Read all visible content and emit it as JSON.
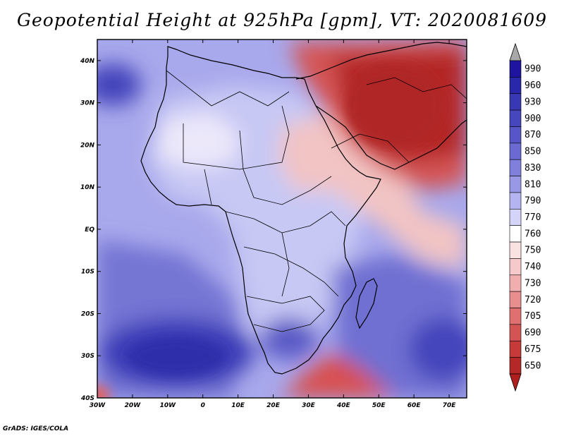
{
  "title": "Geopotential Height at 925hPa [gpm], VT: 2020081609",
  "credit": "GrADS: IGES/COLA",
  "map": {
    "lon_range": [
      -30,
      75
    ],
    "lat_range": [
      -40,
      45
    ],
    "x_ticks": [
      {
        "value": -30,
        "label": "30W"
      },
      {
        "value": -20,
        "label": "20W"
      },
      {
        "value": -10,
        "label": "10W"
      },
      {
        "value": 0,
        "label": "0"
      },
      {
        "value": 10,
        "label": "10E"
      },
      {
        "value": 20,
        "label": "20E"
      },
      {
        "value": 30,
        "label": "30E"
      },
      {
        "value": 40,
        "label": "40E"
      },
      {
        "value": 50,
        "label": "50E"
      },
      {
        "value": 60,
        "label": "60E"
      },
      {
        "value": 70,
        "label": "70E"
      }
    ],
    "y_ticks": [
      {
        "value": 40,
        "label": "40N"
      },
      {
        "value": 30,
        "label": "30N"
      },
      {
        "value": 20,
        "label": "20N"
      },
      {
        "value": 10,
        "label": "10N"
      },
      {
        "value": 0,
        "label": "EQ"
      },
      {
        "value": -10,
        "label": "10S"
      },
      {
        "value": -20,
        "label": "20S"
      },
      {
        "value": -30,
        "label": "30S"
      },
      {
        "value": -40,
        "label": "40S"
      }
    ]
  },
  "colorbar": {
    "top_arrow_color": "#a8a8a8",
    "bottom_arrow_color": "#b01e1e",
    "levels": [
      {
        "label": "990",
        "color": "#1e14a0"
      },
      {
        "label": "960",
        "color": "#2a28aa"
      },
      {
        "label": "930",
        "color": "#3838b4"
      },
      {
        "label": "900",
        "color": "#4646be"
      },
      {
        "label": "870",
        "color": "#5656c8"
      },
      {
        "label": "850",
        "color": "#6a6ad2"
      },
      {
        "label": "830",
        "color": "#8080dc"
      },
      {
        "label": "810",
        "color": "#9898e6"
      },
      {
        "label": "790",
        "color": "#b4b4f0"
      },
      {
        "label": "770",
        "color": "#d4d4f8"
      },
      {
        "label": "760",
        "color": "#ffffff"
      },
      {
        "label": "750",
        "color": "#fbe2e2"
      },
      {
        "label": "740",
        "color": "#f6caca"
      },
      {
        "label": "730",
        "color": "#f0aeae"
      },
      {
        "label": "720",
        "color": "#e88e8e"
      },
      {
        "label": "705",
        "color": "#e07070"
      },
      {
        "label": "690",
        "color": "#d45454"
      },
      {
        "label": "675",
        "color": "#c63a3a"
      },
      {
        "label": "650",
        "color": "#b42828"
      }
    ]
  },
  "field_regions": [
    {
      "name": "atlantic-background",
      "color": "#a8a8ec"
    },
    {
      "name": "south-atlantic-high",
      "color": "#3c3cb8"
    },
    {
      "name": "indian-ocean-high",
      "color": "#4444bc"
    },
    {
      "name": "azores-high",
      "color": "#5050c4"
    },
    {
      "name": "arabia-heat-low",
      "color": "#b42828"
    },
    {
      "name": "east-africa-low",
      "color": "#f2c4c4"
    },
    {
      "name": "southern-ocean-low",
      "color": "#d85050"
    }
  ]
}
